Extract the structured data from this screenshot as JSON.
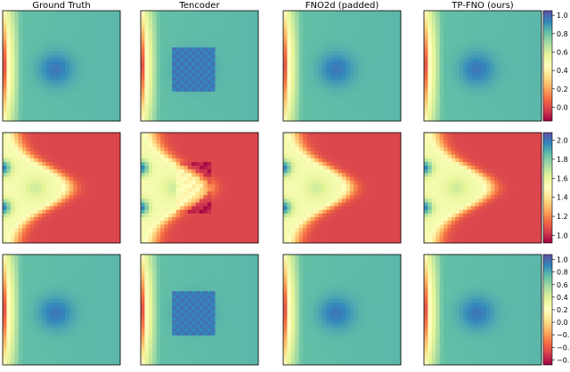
{
  "chart_data": {
    "type": "heatmap",
    "colormap": "Spectral",
    "columns": [
      "Ground Truth",
      "Tencoder",
      "FNO2d (padded)",
      "TP-FNO (ours)"
    ],
    "rows": [
      {
        "pattern": "blob",
        "colorbar": {
          "vmin": -0.15,
          "vmax": 1.05,
          "ticks": [
            "0.0",
            "0.2",
            "0.4",
            "0.6",
            "0.8",
            "1.0"
          ],
          "tick_values": [
            0.0,
            0.2,
            0.4,
            0.6,
            0.8,
            1.0
          ]
        }
      },
      {
        "pattern": "tongue",
        "colorbar": {
          "vmin": 0.92,
          "vmax": 2.08,
          "ticks": [
            "1.0",
            "1.2",
            "1.4",
            "1.6",
            "1.8",
            "2.0"
          ],
          "tick_values": [
            1.0,
            1.2,
            1.4,
            1.6,
            1.8,
            2.0
          ]
        }
      },
      {
        "pattern": "blob",
        "colorbar": {
          "vmin": -0.68,
          "vmax": 1.08,
          "ticks": [
            "−0.6",
            "−0.4",
            "−0.2",
            "0.0",
            "0.2",
            "0.4",
            "0.6",
            "0.8",
            "1.0"
          ],
          "tick_values": [
            -0.6,
            -0.4,
            -0.2,
            0.0,
            0.2,
            0.4,
            0.6,
            0.8,
            1.0
          ]
        }
      }
    ],
    "artifact_column": "Tencoder",
    "grid": false
  }
}
